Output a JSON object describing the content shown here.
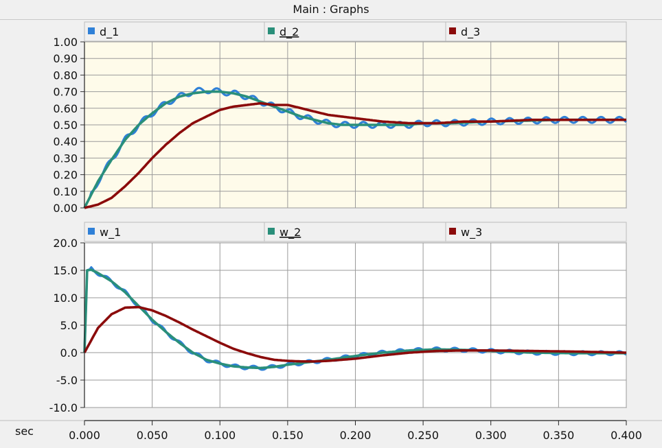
{
  "window": {
    "title": "Main : Graphs"
  },
  "x_unit_label": "sec",
  "colors": {
    "series_1": "#2f80d7",
    "series_2": "#2a8f7a",
    "series_3": "#8b0b0b",
    "plot_bg_top": "#fefbea",
    "plot_bg_bottom": "#ffffff",
    "grid": "#9a9a9a",
    "legend_bg": "#f0f0f0"
  },
  "chart_data": [
    {
      "type": "line",
      "legend_position": "top",
      "series_names": [
        "d_1",
        "d_2",
        "d_3"
      ],
      "underlined_series": "d_2",
      "xlim": [
        0,
        0.4
      ],
      "ylim": [
        0,
        1
      ],
      "grid": true,
      "x_ticks": [
        0,
        0.05,
        0.1,
        0.15,
        0.2,
        0.25,
        0.3,
        0.35,
        0.4
      ],
      "y_ticks": [
        "1.00",
        "0.90",
        "0.80",
        "0.70",
        "0.60",
        "0.50",
        "0.40",
        "0.30",
        "0.20",
        "0.10",
        "0.00"
      ],
      "y_tick_values": [
        1,
        0.9,
        0.8,
        0.7,
        0.6,
        0.5,
        0.4,
        0.3,
        0.2,
        0.1,
        0
      ],
      "series": [
        {
          "name": "d_1",
          "x": [
            0,
            0.01,
            0.02,
            0.03,
            0.04,
            0.05,
            0.06,
            0.07,
            0.08,
            0.09,
            0.1,
            0.11,
            0.12,
            0.13,
            0.14,
            0.15,
            0.16,
            0.17,
            0.18,
            0.19,
            0.2,
            0.21,
            0.22,
            0.23,
            0.24,
            0.25,
            0.27,
            0.3,
            0.35,
            0.4
          ],
          "y": [
            0,
            0.16,
            0.29,
            0.41,
            0.5,
            0.57,
            0.63,
            0.67,
            0.7,
            0.71,
            0.7,
            0.69,
            0.67,
            0.64,
            0.61,
            0.58,
            0.55,
            0.53,
            0.51,
            0.5,
            0.5,
            0.5,
            0.5,
            0.5,
            0.5,
            0.51,
            0.51,
            0.52,
            0.53,
            0.53
          ],
          "ripple_amplitude": 0.018
        },
        {
          "name": "d_2",
          "x": [
            0,
            0.01,
            0.02,
            0.03,
            0.04,
            0.05,
            0.06,
            0.07,
            0.08,
            0.09,
            0.1,
            0.11,
            0.12,
            0.13,
            0.14,
            0.15,
            0.16,
            0.17,
            0.18,
            0.19,
            0.2,
            0.21,
            0.22,
            0.23,
            0.24,
            0.25,
            0.27,
            0.3,
            0.35,
            0.4
          ],
          "y": [
            0,
            0.16,
            0.29,
            0.41,
            0.5,
            0.57,
            0.63,
            0.67,
            0.69,
            0.7,
            0.7,
            0.69,
            0.67,
            0.64,
            0.61,
            0.58,
            0.55,
            0.53,
            0.51,
            0.5,
            0.5,
            0.5,
            0.5,
            0.5,
            0.5,
            0.51,
            0.51,
            0.52,
            0.53,
            0.53
          ]
        },
        {
          "name": "d_3",
          "x": [
            0,
            0.01,
            0.02,
            0.03,
            0.04,
            0.05,
            0.06,
            0.07,
            0.08,
            0.09,
            0.1,
            0.11,
            0.12,
            0.13,
            0.14,
            0.15,
            0.16,
            0.17,
            0.18,
            0.19,
            0.2,
            0.22,
            0.24,
            0.26,
            0.28,
            0.3,
            0.33,
            0.36,
            0.4
          ],
          "y": [
            0,
            0.02,
            0.06,
            0.13,
            0.21,
            0.3,
            0.38,
            0.45,
            0.51,
            0.55,
            0.59,
            0.61,
            0.62,
            0.63,
            0.62,
            0.62,
            0.6,
            0.58,
            0.56,
            0.55,
            0.54,
            0.52,
            0.51,
            0.51,
            0.52,
            0.52,
            0.53,
            0.53,
            0.53
          ]
        }
      ]
    },
    {
      "type": "line",
      "legend_position": "top",
      "series_names": [
        "w_1",
        "w_2",
        "w_3"
      ],
      "underlined_series": "w_2",
      "xlim": [
        0,
        0.4
      ],
      "ylim": [
        -10,
        20
      ],
      "grid": true,
      "x_ticks": [
        0,
        0.05,
        0.1,
        0.15,
        0.2,
        0.25,
        0.3,
        0.35,
        0.4
      ],
      "x_tick_labels": [
        "0.000",
        "0.050",
        "0.100",
        "0.150",
        "0.200",
        "0.250",
        "0.300",
        "0.350",
        "0.400"
      ],
      "y_ticks": [
        "20.0",
        "15.0",
        "10.0",
        "5.0",
        "0.0",
        "-5.0",
        "-10.0"
      ],
      "y_tick_values": [
        20,
        15,
        10,
        5,
        0,
        -5,
        -10
      ],
      "series": [
        {
          "name": "w_1",
          "x": [
            0,
            0.002,
            0.005,
            0.01,
            0.02,
            0.03,
            0.04,
            0.05,
            0.06,
            0.07,
            0.08,
            0.09,
            0.1,
            0.11,
            0.12,
            0.13,
            0.14,
            0.15,
            0.16,
            0.17,
            0.18,
            0.2,
            0.22,
            0.24,
            0.26,
            0.28,
            0.3,
            0.33,
            0.36,
            0.4
          ],
          "y": [
            0,
            15,
            15.3,
            14.5,
            13,
            11,
            8.5,
            6,
            3.8,
            1.8,
            0,
            -1.3,
            -2,
            -2.5,
            -2.7,
            -2.8,
            -2.6,
            -2.2,
            -1.9,
            -1.6,
            -1.3,
            -0.6,
            0,
            0.4,
            0.6,
            0.5,
            0.3,
            0,
            -0.1,
            -0.1
          ],
          "ripple_amplitude": 0.35
        },
        {
          "name": "w_2",
          "x": [
            0,
            0.002,
            0.005,
            0.01,
            0.02,
            0.03,
            0.04,
            0.05,
            0.06,
            0.07,
            0.08,
            0.09,
            0.1,
            0.11,
            0.12,
            0.13,
            0.14,
            0.15,
            0.16,
            0.17,
            0.18,
            0.2,
            0.22,
            0.24,
            0.26,
            0.28,
            0.3,
            0.33,
            0.36,
            0.4
          ],
          "y": [
            0,
            15,
            15.1,
            14.5,
            13,
            11,
            8.5,
            6,
            3.8,
            1.8,
            0,
            -1.3,
            -2,
            -2.5,
            -2.7,
            -2.8,
            -2.6,
            -2.2,
            -1.9,
            -1.6,
            -1.3,
            -0.6,
            0,
            0.4,
            0.6,
            0.5,
            0.3,
            0,
            -0.1,
            -0.1
          ]
        },
        {
          "name": "w_3",
          "x": [
            0,
            0.01,
            0.02,
            0.03,
            0.04,
            0.05,
            0.06,
            0.07,
            0.08,
            0.09,
            0.1,
            0.11,
            0.12,
            0.13,
            0.14,
            0.15,
            0.16,
            0.17,
            0.18,
            0.19,
            0.2,
            0.22,
            0.24,
            0.26,
            0.28,
            0.3,
            0.33,
            0.36,
            0.4
          ],
          "y": [
            0,
            4.5,
            7,
            8.2,
            8.3,
            7.7,
            6.7,
            5.5,
            4.2,
            3,
            1.8,
            0.7,
            -0.1,
            -0.8,
            -1.3,
            -1.5,
            -1.6,
            -1.6,
            -1.5,
            -1.3,
            -1.1,
            -0.5,
            0,
            0.3,
            0.4,
            0.4,
            0.3,
            0.2,
            0
          ]
        }
      ]
    }
  ]
}
